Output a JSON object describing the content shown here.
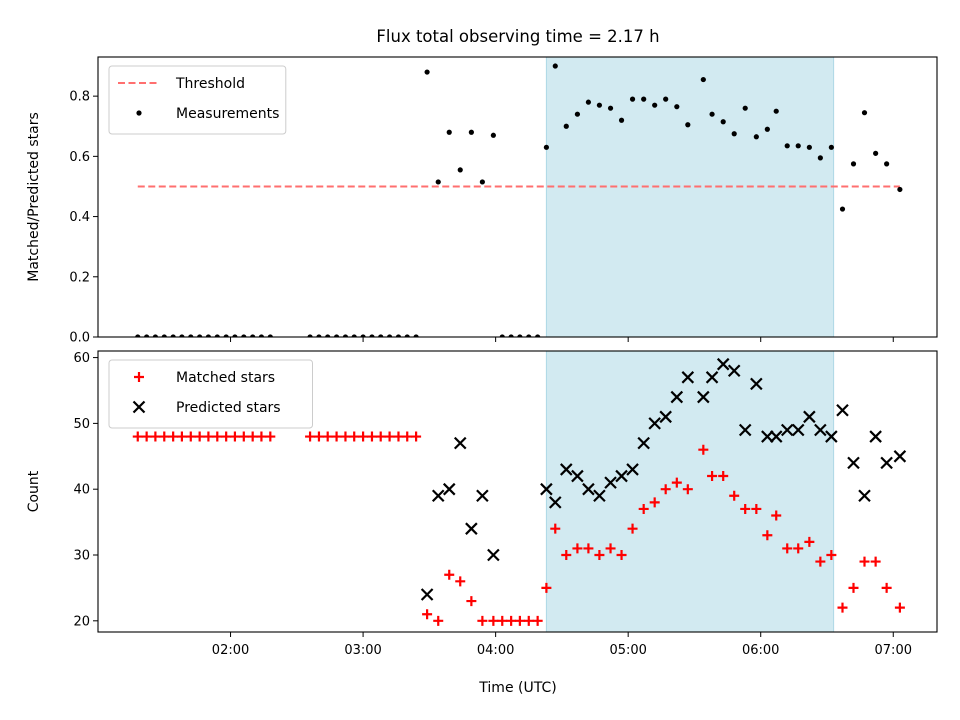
{
  "chart_data": {
    "type": "scatter",
    "title": "Flux total observing time = 2.17 h",
    "xlabel": "Time (UTC)",
    "x_unit": "hours UTC",
    "xlim": [
      1.0,
      7.33
    ],
    "xticks": [
      2,
      3,
      4,
      5,
      6,
      7
    ],
    "xtick_labels": [
      "02:00",
      "03:00",
      "04:00",
      "05:00",
      "06:00",
      "07:00"
    ],
    "shaded_interval": {
      "start": 4.383,
      "end": 6.55,
      "color": "#add8e6"
    },
    "panels": [
      {
        "ylabel": "Matched/Predicted stars",
        "ylim": [
          0,
          0.93
        ],
        "yticks": [
          0.0,
          0.2,
          0.4,
          0.6,
          0.8
        ],
        "ytick_labels": [
          "0.0",
          "0.2",
          "0.4",
          "0.6",
          "0.8"
        ],
        "legend_position": "upper left",
        "series": [
          {
            "name": "Threshold",
            "kind": "hline",
            "y": 0.5,
            "x_range": [
              1.3,
              7.05
            ],
            "color": "#ff6f6f",
            "style": "dashed"
          },
          {
            "name": "Measurements",
            "kind": "scatter",
            "marker": "dot",
            "color": "#000000",
            "points": [
              [
                1.3,
                0
              ],
              [
                1.367,
                0
              ],
              [
                1.433,
                0
              ],
              [
                1.5,
                0
              ],
              [
                1.567,
                0
              ],
              [
                1.633,
                0
              ],
              [
                1.7,
                0
              ],
              [
                1.767,
                0
              ],
              [
                1.833,
                0
              ],
              [
                1.9,
                0
              ],
              [
                1.967,
                0
              ],
              [
                2.033,
                0
              ],
              [
                2.1,
                0
              ],
              [
                2.167,
                0
              ],
              [
                2.233,
                0
              ],
              [
                2.3,
                0
              ],
              [
                2.6,
                0
              ],
              [
                2.667,
                0
              ],
              [
                2.733,
                0
              ],
              [
                2.8,
                0
              ],
              [
                2.867,
                0
              ],
              [
                2.933,
                0
              ],
              [
                3.0,
                0
              ],
              [
                3.067,
                0
              ],
              [
                3.133,
                0
              ],
              [
                3.2,
                0
              ],
              [
                3.267,
                0
              ],
              [
                3.333,
                0
              ],
              [
                3.4,
                0
              ],
              [
                3.483,
                0.88
              ],
              [
                3.567,
                0.515
              ],
              [
                3.65,
                0.68
              ],
              [
                3.733,
                0.555
              ],
              [
                3.817,
                0.68
              ],
              [
                3.9,
                0.515
              ],
              [
                3.983,
                0.67
              ],
              [
                4.05,
                0
              ],
              [
                4.117,
                0
              ],
              [
                4.183,
                0
              ],
              [
                4.25,
                0
              ],
              [
                4.317,
                0
              ],
              [
                4.383,
                0.63
              ],
              [
                4.45,
                0.9
              ],
              [
                4.533,
                0.7
              ],
              [
                4.617,
                0.74
              ],
              [
                4.7,
                0.78
              ],
              [
                4.783,
                0.77
              ],
              [
                4.867,
                0.76
              ],
              [
                4.95,
                0.72
              ],
              [
                5.033,
                0.79
              ],
              [
                5.117,
                0.79
              ],
              [
                5.2,
                0.77
              ],
              [
                5.283,
                0.79
              ],
              [
                5.367,
                0.765
              ],
              [
                5.45,
                0.705
              ],
              [
                5.567,
                0.855
              ],
              [
                5.633,
                0.74
              ],
              [
                5.717,
                0.715
              ],
              [
                5.8,
                0.675
              ],
              [
                5.883,
                0.76
              ],
              [
                5.967,
                0.665
              ],
              [
                6.05,
                0.69
              ],
              [
                6.117,
                0.75
              ],
              [
                6.2,
                0.635
              ],
              [
                6.283,
                0.635
              ],
              [
                6.367,
                0.63
              ],
              [
                6.45,
                0.595
              ],
              [
                6.533,
                0.63
              ],
              [
                6.617,
                0.425
              ],
              [
                6.7,
                0.575
              ],
              [
                6.783,
                0.745
              ],
              [
                6.867,
                0.61
              ],
              [
                6.95,
                0.575
              ],
              [
                7.05,
                0.49
              ]
            ]
          }
        ]
      },
      {
        "ylabel": "Count",
        "ylim": [
          18.3,
          61
        ],
        "yticks": [
          20,
          30,
          40,
          50,
          60
        ],
        "ytick_labels": [
          "20",
          "30",
          "40",
          "50",
          "60"
        ],
        "legend_position": "upper left",
        "series": [
          {
            "name": "Matched stars",
            "kind": "scatter",
            "marker": "plus",
            "color": "#ff0000",
            "points": [
              [
                1.3,
                48
              ],
              [
                1.367,
                48
              ],
              [
                1.433,
                48
              ],
              [
                1.5,
                48
              ],
              [
                1.567,
                48
              ],
              [
                1.633,
                48
              ],
              [
                1.7,
                48
              ],
              [
                1.767,
                48
              ],
              [
                1.833,
                48
              ],
              [
                1.9,
                48
              ],
              [
                1.967,
                48
              ],
              [
                2.033,
                48
              ],
              [
                2.1,
                48
              ],
              [
                2.167,
                48
              ],
              [
                2.233,
                48
              ],
              [
                2.3,
                48
              ],
              [
                2.6,
                48
              ],
              [
                2.667,
                48
              ],
              [
                2.733,
                48
              ],
              [
                2.8,
                48
              ],
              [
                2.867,
                48
              ],
              [
                2.933,
                48
              ],
              [
                3.0,
                48
              ],
              [
                3.067,
                48
              ],
              [
                3.133,
                48
              ],
              [
                3.2,
                48
              ],
              [
                3.267,
                48
              ],
              [
                3.333,
                48
              ],
              [
                3.4,
                48
              ],
              [
                3.483,
                21
              ],
              [
                3.567,
                20
              ],
              [
                3.65,
                27
              ],
              [
                3.733,
                26
              ],
              [
                3.817,
                23
              ],
              [
                3.9,
                20
              ],
              [
                3.983,
                20
              ],
              [
                4.05,
                20
              ],
              [
                4.117,
                20
              ],
              [
                4.183,
                20
              ],
              [
                4.25,
                20
              ],
              [
                4.317,
                20
              ],
              [
                4.383,
                25
              ],
              [
                4.45,
                34
              ],
              [
                4.533,
                30
              ],
              [
                4.617,
                31
              ],
              [
                4.7,
                31
              ],
              [
                4.783,
                30
              ],
              [
                4.867,
                31
              ],
              [
                4.95,
                30
              ],
              [
                5.033,
                34
              ],
              [
                5.117,
                37
              ],
              [
                5.2,
                38
              ],
              [
                5.283,
                40
              ],
              [
                5.367,
                41
              ],
              [
                5.45,
                40
              ],
              [
                5.567,
                46
              ],
              [
                5.633,
                42
              ],
              [
                5.717,
                42
              ],
              [
                5.8,
                39
              ],
              [
                5.883,
                37
              ],
              [
                5.967,
                37
              ],
              [
                6.05,
                33
              ],
              [
                6.117,
                36
              ],
              [
                6.2,
                31
              ],
              [
                6.283,
                31
              ],
              [
                6.367,
                32
              ],
              [
                6.45,
                29
              ],
              [
                6.533,
                30
              ],
              [
                6.617,
                22
              ],
              [
                6.7,
                25
              ],
              [
                6.783,
                29
              ],
              [
                6.867,
                29
              ],
              [
                6.95,
                25
              ],
              [
                7.05,
                22
              ]
            ]
          },
          {
            "name": "Predicted stars",
            "kind": "scatter",
            "marker": "x",
            "color": "#000000",
            "points": [
              [
                3.483,
                24
              ],
              [
                3.567,
                39
              ],
              [
                3.65,
                40
              ],
              [
                3.733,
                47
              ],
              [
                3.817,
                34
              ],
              [
                3.9,
                39
              ],
              [
                3.983,
                30
              ],
              [
                4.383,
                40
              ],
              [
                4.45,
                38
              ],
              [
                4.533,
                43
              ],
              [
                4.617,
                42
              ],
              [
                4.7,
                40
              ],
              [
                4.783,
                39
              ],
              [
                4.867,
                41
              ],
              [
                4.95,
                42
              ],
              [
                5.033,
                43
              ],
              [
                5.117,
                47
              ],
              [
                5.2,
                50
              ],
              [
                5.283,
                51
              ],
              [
                5.367,
                54
              ],
              [
                5.45,
                57
              ],
              [
                5.567,
                54
              ],
              [
                5.633,
                57
              ],
              [
                5.717,
                59
              ],
              [
                5.8,
                58
              ],
              [
                5.883,
                49
              ],
              [
                5.967,
                56
              ],
              [
                6.05,
                48
              ],
              [
                6.117,
                48
              ],
              [
                6.2,
                49
              ],
              [
                6.283,
                49
              ],
              [
                6.367,
                51
              ],
              [
                6.45,
                49
              ],
              [
                6.533,
                48
              ],
              [
                6.617,
                52
              ],
              [
                6.7,
                44
              ],
              [
                6.783,
                39
              ],
              [
                6.867,
                48
              ],
              [
                6.95,
                44
              ],
              [
                7.05,
                45
              ]
            ]
          }
        ]
      }
    ]
  }
}
